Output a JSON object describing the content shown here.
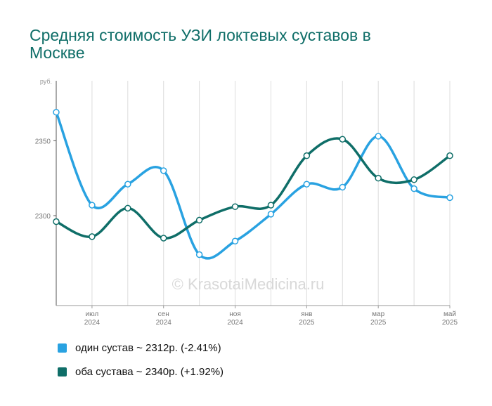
{
  "chart_data": {
    "type": "line",
    "title": "Средняя стоимость УЗИ локтевых суставов в Москве",
    "y_unit": "руб.",
    "ylim": [
      2240,
      2390
    ],
    "y_ticks": [
      2300,
      2350
    ],
    "grid": true,
    "x_tick_labels": [
      {
        "month": "июл",
        "year": "2024"
      },
      {
        "month": "сен",
        "year": "2024"
      },
      {
        "month": "ноя",
        "year": "2024"
      },
      {
        "month": "янв",
        "year": "2025"
      },
      {
        "month": "мар",
        "year": "2025"
      },
      {
        "month": "май",
        "year": "2025"
      }
    ],
    "x": [
      "2024-06",
      "2024-07",
      "2024-08",
      "2024-09",
      "2024-10",
      "2024-11",
      "2024-12",
      "2025-01",
      "2025-02",
      "2025-03",
      "2025-04",
      "2025-05"
    ],
    "series": [
      {
        "name": "один сустав",
        "color": "#29a2e1",
        "values": [
          2369,
          2307,
          2321,
          2330,
          2274,
          2283,
          2301,
          2321,
          2319,
          2353,
          2318,
          2312
        ],
        "legend": "один сустав ~ 2312р. (-2.41%)"
      },
      {
        "name": "оба сустава",
        "color": "#0f6e68",
        "values": [
          2296,
          2286,
          2305,
          2285,
          2297,
          2306,
          2307,
          2340,
          2351,
          2325,
          2324,
          2340
        ],
        "legend": "оба сустава ~ 2340р. (+1.92%)"
      }
    ],
    "legend_position": "bottom",
    "watermark": "© KrasotaiMedicina.ru"
  }
}
